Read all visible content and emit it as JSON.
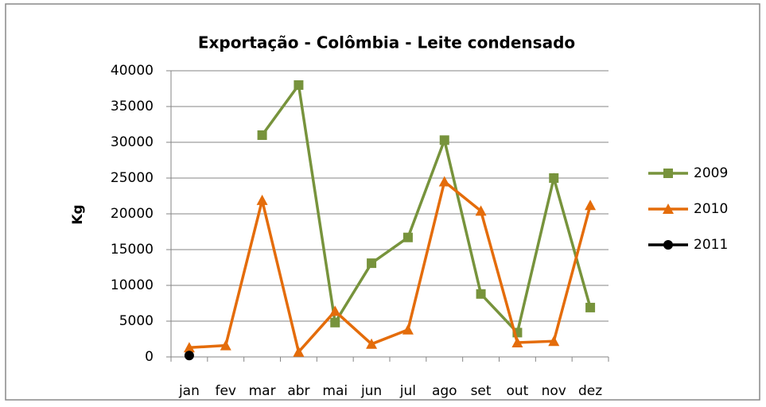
{
  "chart_data": {
    "type": "line",
    "title": "Exportação - Colômbia - Leite condensado",
    "y_label": "Kg",
    "categories": [
      "jan",
      "fev",
      "mar",
      "abr",
      "mai",
      "jun",
      "jul",
      "ago",
      "set",
      "out",
      "nov",
      "dez"
    ],
    "series": [
      {
        "name": "2009",
        "color": "#77933c",
        "marker": "square",
        "values": [
          null,
          null,
          31000,
          38000,
          4800,
          13100,
          16700,
          30300,
          8800,
          3400,
          25000,
          6900
        ]
      },
      {
        "name": "2010",
        "color": "#e46c0a",
        "marker": "triangle",
        "values": [
          1300,
          1600,
          21900,
          700,
          6400,
          1800,
          3800,
          24500,
          20400,
          2000,
          2200,
          21200
        ]
      },
      {
        "name": "2011",
        "color": "#000000",
        "marker": "circle",
        "values": [
          200,
          null,
          null,
          null,
          null,
          null,
          null,
          null,
          null,
          null,
          null,
          null
        ]
      }
    ],
    "ylim": [
      0,
      40000
    ],
    "yticks": [
      0,
      5000,
      10000,
      15000,
      20000,
      25000,
      30000,
      35000,
      40000
    ],
    "grid": true,
    "legend": "right"
  }
}
